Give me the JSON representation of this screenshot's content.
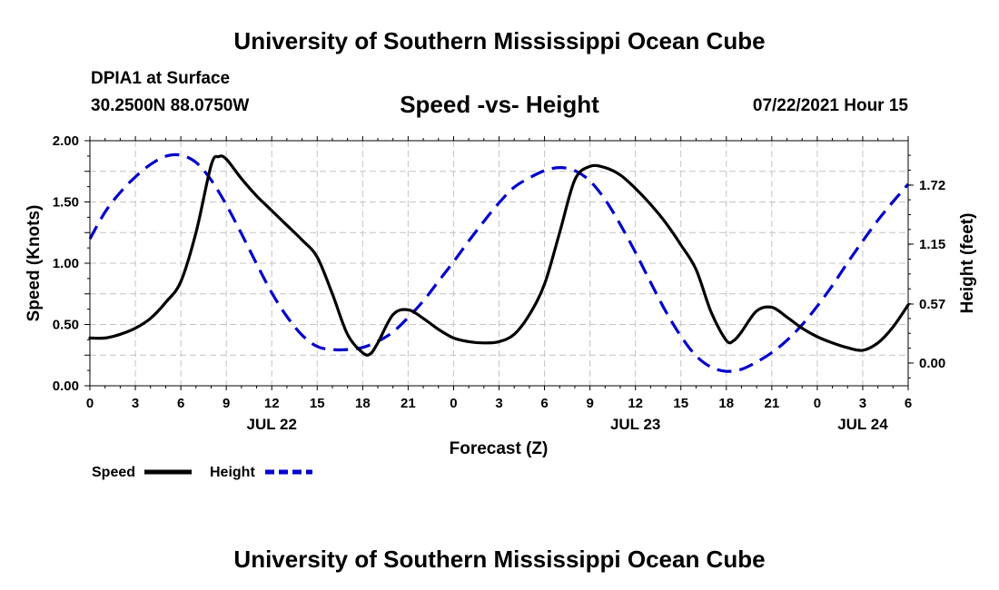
{
  "page": {
    "title_top": "University of Southern Mississippi Ocean Cube",
    "title_bottom": "University of Southern Mississippi Ocean Cube",
    "station": "DPIA1 at Surface",
    "coords": "30.2500N  88.0750W",
    "chart_title": "Speed -vs- Height",
    "datetime": "07/22/2021 Hour 15"
  },
  "chart_data": {
    "type": "line",
    "title": "Speed -vs- Height",
    "xlabel": "Forecast (Z)",
    "ylabel": "Speed (Knots)",
    "y2label": "Height (feet)",
    "xlim": [
      0,
      54
    ],
    "ylim": [
      0,
      2.0
    ],
    "y2lim": [
      -0.22,
      2.15
    ],
    "x_ticks": [
      0,
      3,
      6,
      9,
      12,
      15,
      18,
      21,
      24,
      27,
      30,
      33,
      36,
      39,
      42,
      45,
      48,
      51,
      54
    ],
    "x_tick_labels": [
      "0",
      "3",
      "6",
      "9",
      "12",
      "15",
      "18",
      "21",
      "0",
      "3",
      "6",
      "9",
      "12",
      "15",
      "18",
      "21",
      "0",
      "3",
      "6"
    ],
    "date_labels": [
      {
        "x": 12,
        "label": "JUL 22"
      },
      {
        "x": 36,
        "label": "JUL 23"
      },
      {
        "x": 51,
        "label": "JUL 24"
      }
    ],
    "y_ticks": [
      0.0,
      0.5,
      1.0,
      1.5,
      2.0
    ],
    "y_tick_labels": [
      "0.00",
      "0.50",
      "1.00",
      "1.50",
      "2.00"
    ],
    "y2_ticks": [
      0.0,
      0.57,
      1.15,
      1.72
    ],
    "y2_tick_labels": [
      "0.00",
      "0.57",
      "1.15",
      "1.72"
    ],
    "legend": [
      {
        "label": "Speed",
        "color": "#000000",
        "dash": "solid"
      },
      {
        "label": "Height",
        "color": "#0000cc",
        "dash": "dashed"
      }
    ],
    "series": [
      {
        "name": "Speed",
        "axis": "left",
        "color": "#000000",
        "x": [
          0,
          1,
          2,
          3,
          4,
          5,
          6,
          7,
          8,
          8.5,
          9,
          10,
          11,
          12,
          13,
          14,
          15,
          16,
          17,
          18,
          18.5,
          19,
          20,
          21,
          22,
          23,
          24,
          25,
          26,
          27,
          28,
          29,
          30,
          31,
          32,
          33,
          34,
          35,
          36,
          37,
          38,
          39,
          40,
          41,
          42,
          42.5,
          43,
          44,
          45,
          46,
          47,
          48,
          49,
          50,
          51,
          52,
          53,
          54
        ],
        "values": [
          0.39,
          0.39,
          0.42,
          0.47,
          0.55,
          0.68,
          0.85,
          1.25,
          1.8,
          1.87,
          1.85,
          1.69,
          1.55,
          1.43,
          1.31,
          1.19,
          1.05,
          0.75,
          0.42,
          0.27,
          0.26,
          0.35,
          0.58,
          0.62,
          0.55,
          0.46,
          0.39,
          0.36,
          0.35,
          0.36,
          0.42,
          0.58,
          0.83,
          1.25,
          1.68,
          1.79,
          1.78,
          1.72,
          1.61,
          1.48,
          1.33,
          1.15,
          0.95,
          0.6,
          0.37,
          0.37,
          0.44,
          0.61,
          0.64,
          0.56,
          0.47,
          0.4,
          0.35,
          0.31,
          0.29,
          0.35,
          0.48,
          0.66
        ]
      },
      {
        "name": "Height",
        "axis": "right",
        "color": "#0000cc",
        "x": [
          0,
          1,
          2,
          3,
          4,
          5,
          6,
          7,
          8,
          9,
          10,
          11,
          12,
          13,
          14,
          15,
          16,
          17,
          18,
          19,
          20,
          21,
          22,
          23,
          24,
          25,
          26,
          27,
          28,
          29,
          30,
          31,
          32,
          33,
          34,
          35,
          36,
          37,
          38,
          39,
          40,
          41,
          42,
          43,
          44,
          45,
          46,
          47,
          48,
          49,
          50,
          51,
          52,
          53,
          54
        ],
        "values": [
          1.2,
          1.46,
          1.65,
          1.8,
          1.92,
          2.0,
          2.01,
          1.94,
          1.77,
          1.53,
          1.25,
          0.96,
          0.68,
          0.45,
          0.27,
          0.16,
          0.13,
          0.13,
          0.15,
          0.21,
          0.3,
          0.44,
          0.6,
          0.79,
          0.98,
          1.18,
          1.37,
          1.55,
          1.7,
          1.79,
          1.86,
          1.89,
          1.86,
          1.76,
          1.58,
          1.34,
          1.07,
          0.78,
          0.5,
          0.26,
          0.07,
          -0.04,
          -0.08,
          -0.06,
          0.01,
          0.1,
          0.22,
          0.37,
          0.55,
          0.75,
          0.97,
          1.18,
          1.38,
          1.56,
          1.73
        ]
      }
    ]
  }
}
